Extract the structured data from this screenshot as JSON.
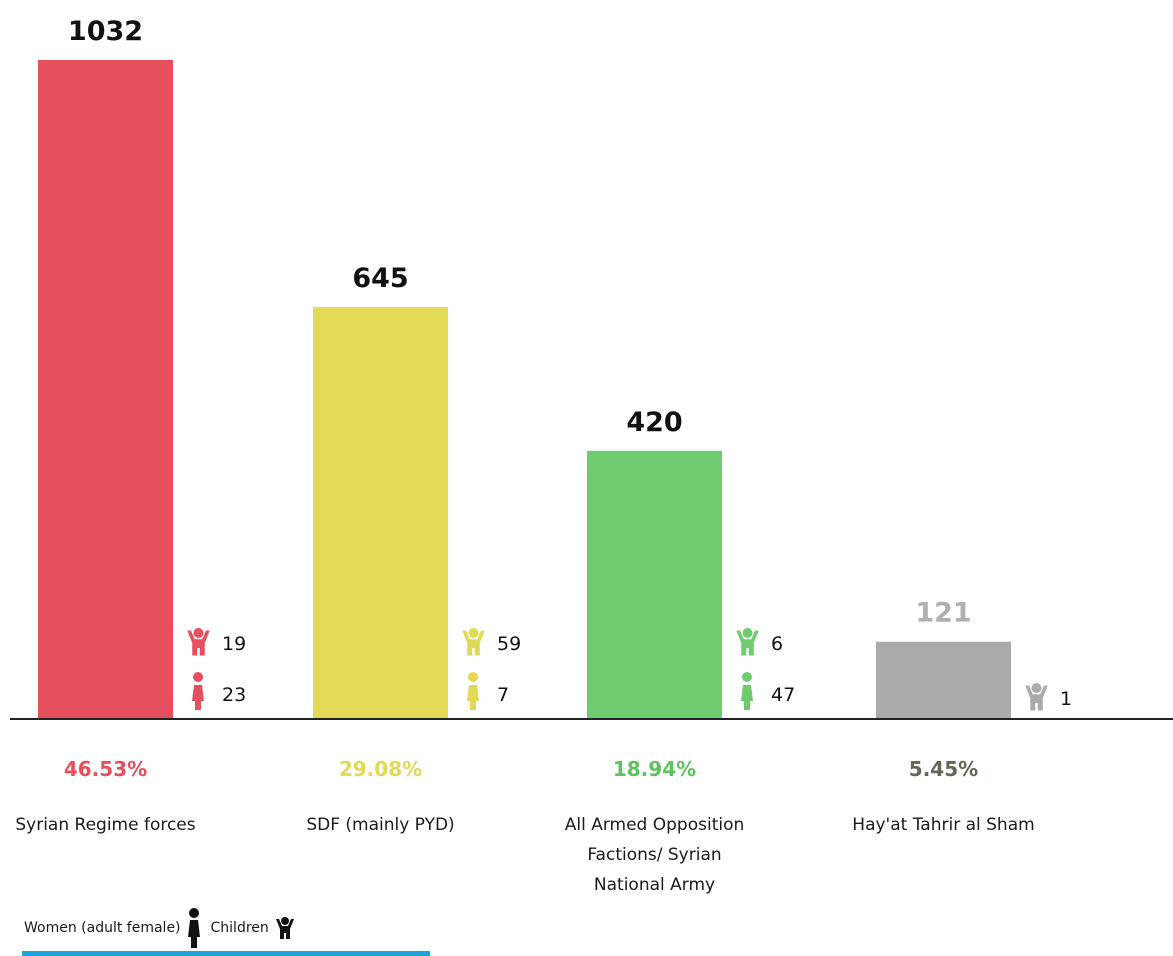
{
  "chart_data": {
    "type": "bar",
    "categories": [
      "Syrian Regime forces",
      "SDF (mainly PYD)",
      "All Armed Opposition Factions/ Syrian National Army",
      "Hay'at Tahrir al Sham"
    ],
    "category_label_lines": [
      [
        "Syrian Regime forces"
      ],
      [
        "SDF (mainly PYD)"
      ],
      [
        "All Armed Opposition",
        "Factions/ Syrian",
        "National Army"
      ],
      [
        "Hay'at Tahrir al Sham"
      ]
    ],
    "values": [
      1032,
      645,
      420,
      121
    ],
    "value_labels": [
      "1032",
      "645",
      "420",
      "121"
    ],
    "percentages": [
      "46.53%",
      "29.08%",
      "18.94%",
      "5.45%"
    ],
    "children": [
      19,
      59,
      6,
      1
    ],
    "children_labels": [
      "19",
      "59",
      "6",
      "1"
    ],
    "women": [
      23,
      7,
      47,
      null
    ],
    "women_labels": [
      "23",
      "7",
      "47",
      ""
    ],
    "colors": [
      "#e64f5e",
      "#e2d955",
      "#6ecc6e",
      "#aaaaaa"
    ],
    "value_label_colors": [
      "#111111",
      "#111111",
      "#111111",
      "#b0b0b0"
    ],
    "pct_colors": [
      "#e64f5e",
      "#e2d955",
      "#5dc45d",
      "#666655"
    ],
    "ylim": [
      0,
      1032
    ],
    "grid": false,
    "icons": [
      "child-icon",
      "woman-icon"
    ]
  },
  "legend": {
    "women_label": "Women (adult female)",
    "children_label": "Children",
    "women_icon": "woman-icon",
    "children_icon": "child-icon",
    "line_color": "#1aa6d8"
  }
}
